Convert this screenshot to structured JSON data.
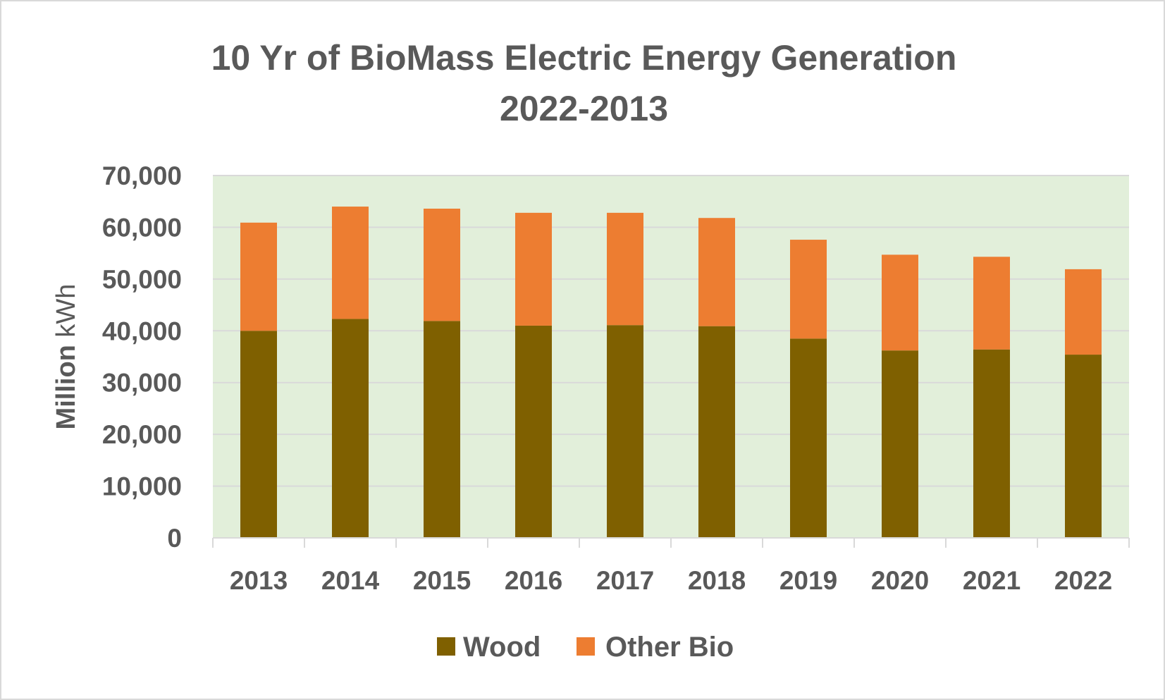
{
  "chart_data": {
    "type": "bar",
    "stacked": true,
    "title": [
      "10 Yr of BioMass Electric Energy Generation",
      "2022-2013"
    ],
    "ylabel_bold": "Million",
    "ylabel_rest": " kWh",
    "xlabel": "",
    "categories": [
      "2013",
      "2014",
      "2015",
      "2016",
      "2017",
      "2018",
      "2019",
      "2020",
      "2021",
      "2022"
    ],
    "series": [
      {
        "name": "Wood",
        "color": "#7f6000",
        "values": [
          40000,
          42300,
          41900,
          41000,
          41100,
          40900,
          38500,
          36200,
          36400,
          35400
        ]
      },
      {
        "name": "Other Bio",
        "color": "#ed7d31",
        "values": [
          20900,
          21700,
          21700,
          21800,
          21700,
          20900,
          19100,
          18500,
          17900,
          16500
        ]
      }
    ],
    "ylim": [
      0,
      70000
    ],
    "yticks": [
      0,
      10000,
      20000,
      30000,
      40000,
      50000,
      60000,
      70000
    ],
    "ytick_labels": [
      "0",
      "10,000",
      "20,000",
      "30,000",
      "40,000",
      "50,000",
      "60,000",
      "70,000"
    ],
    "grid": true,
    "legend_position": "bottom",
    "plot_background": "#e2efda",
    "gridline_color": "#d9d9d9"
  }
}
